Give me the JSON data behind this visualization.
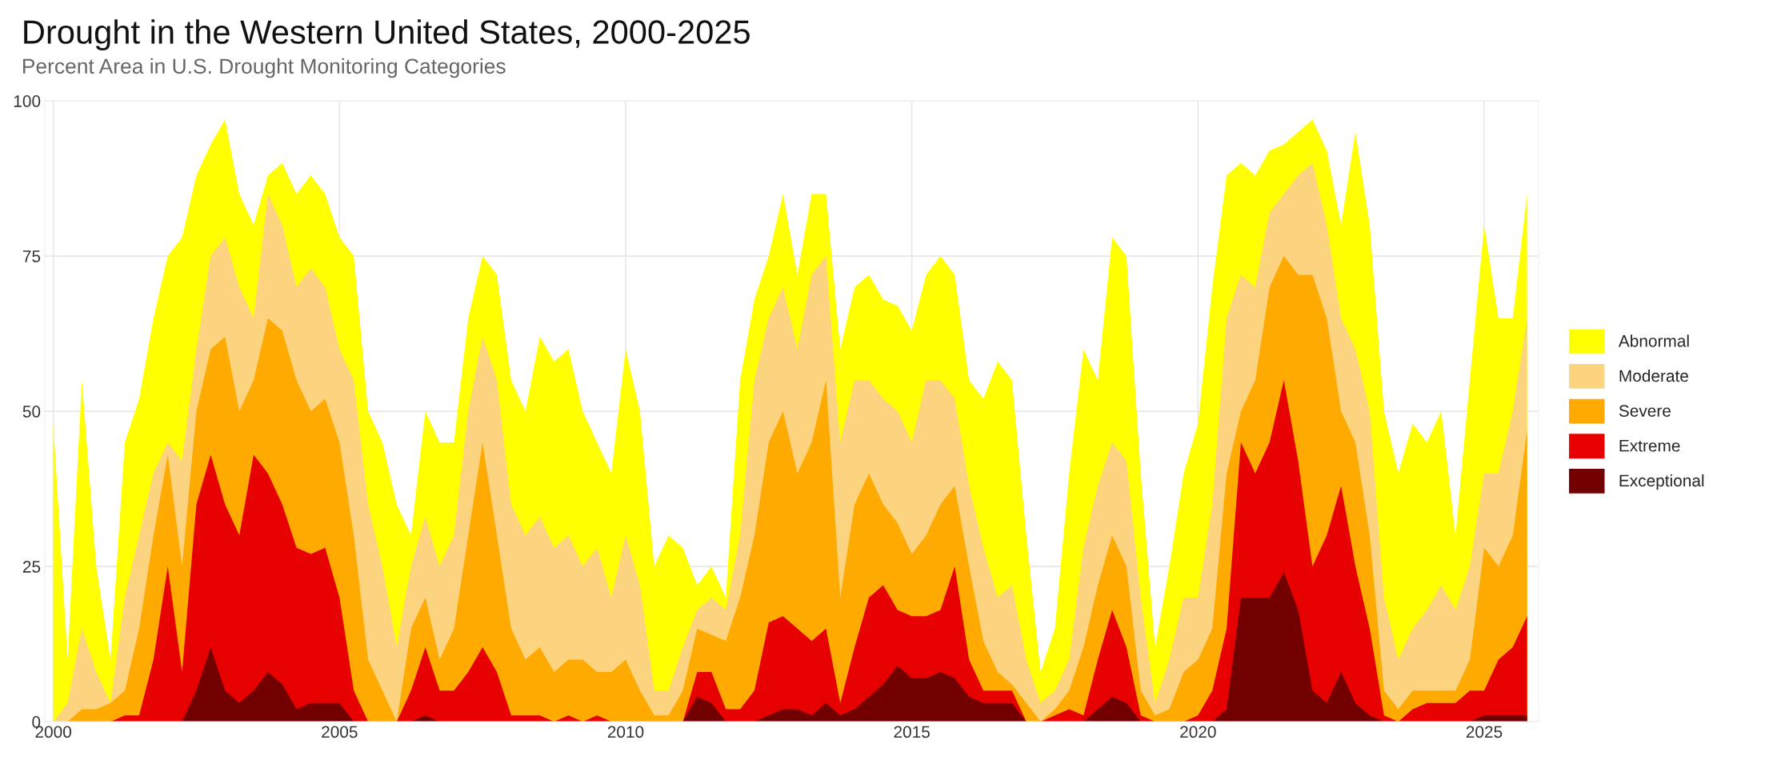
{
  "chart_data": {
    "type": "area",
    "title": "Drought in the Western United States, 2000-2025",
    "subtitle": "Percent Area in U.S. Drought Monitoring Categories",
    "x": [
      2000,
      2000.25,
      2000.5,
      2000.75,
      2001,
      2001.25,
      2001.5,
      2001.75,
      2002,
      2002.25,
      2002.5,
      2002.75,
      2003,
      2003.25,
      2003.5,
      2003.75,
      2004,
      2004.25,
      2004.5,
      2004.75,
      2005,
      2005.25,
      2005.5,
      2005.75,
      2006,
      2006.25,
      2006.5,
      2006.75,
      2007,
      2007.25,
      2007.5,
      2007.75,
      2008,
      2008.25,
      2008.5,
      2008.75,
      2009,
      2009.25,
      2009.5,
      2009.75,
      2010,
      2010.25,
      2010.5,
      2010.75,
      2011,
      2011.25,
      2011.5,
      2011.75,
      2012,
      2012.25,
      2012.5,
      2012.75,
      2013,
      2013.25,
      2013.5,
      2013.75,
      2014,
      2014.25,
      2014.5,
      2014.75,
      2015,
      2015.25,
      2015.5,
      2015.75,
      2016,
      2016.25,
      2016.5,
      2016.75,
      2017,
      2017.25,
      2017.5,
      2017.75,
      2018,
      2018.25,
      2018.5,
      2018.75,
      2019,
      2019.25,
      2019.5,
      2019.75,
      2020,
      2020.25,
      2020.5,
      2020.75,
      2021,
      2021.25,
      2021.5,
      2021.75,
      2022,
      2022.25,
      2022.5,
      2022.75,
      2023,
      2023.25,
      2023.5,
      2023.75,
      2024,
      2024.25,
      2024.5,
      2024.75,
      2025,
      2025.25,
      2025.5,
      2025.75
    ],
    "series": [
      {
        "name": "Abnormal",
        "color": "#ffff00",
        "values": [
          48,
          10,
          55,
          25,
          10,
          45,
          52,
          65,
          75,
          78,
          88,
          93,
          97,
          85,
          80,
          88,
          90,
          85,
          88,
          85,
          78,
          75,
          50,
          45,
          35,
          30,
          50,
          45,
          45,
          65,
          75,
          72,
          55,
          50,
          62,
          58,
          60,
          50,
          45,
          40,
          60,
          50,
          25,
          30,
          28,
          22,
          25,
          20,
          55,
          68,
          75,
          85,
          72,
          85,
          85,
          60,
          70,
          72,
          68,
          67,
          63,
          72,
          75,
          72,
          55,
          52,
          58,
          55,
          30,
          8,
          15,
          40,
          60,
          55,
          78,
          75,
          40,
          12,
          25,
          40,
          48,
          70,
          88,
          90,
          88,
          92,
          93,
          95,
          97,
          92,
          80,
          95,
          80,
          50,
          40,
          48,
          45,
          50,
          30,
          55,
          80,
          65,
          65,
          85
        ]
      },
      {
        "name": "Moderate",
        "color": "#fcd37f",
        "values": [
          0,
          3,
          15,
          8,
          3,
          20,
          30,
          40,
          45,
          42,
          60,
          75,
          78,
          70,
          65,
          85,
          80,
          70,
          73,
          70,
          60,
          55,
          35,
          25,
          12,
          25,
          33,
          25,
          30,
          50,
          62,
          55,
          35,
          30,
          33,
          28,
          30,
          25,
          28,
          20,
          30,
          22,
          5,
          5,
          12,
          18,
          20,
          18,
          30,
          55,
          65,
          70,
          60,
          72,
          75,
          45,
          55,
          55,
          52,
          50,
          45,
          55,
          55,
          52,
          38,
          28,
          20,
          22,
          10,
          3,
          5,
          10,
          28,
          38,
          45,
          42,
          20,
          3,
          10,
          20,
          20,
          35,
          65,
          72,
          70,
          82,
          85,
          88,
          90,
          80,
          65,
          60,
          50,
          20,
          10,
          15,
          18,
          22,
          18,
          25,
          40,
          40,
          50,
          65
        ]
      },
      {
        "name": "Severe",
        "color": "#ffaa00",
        "values": [
          0,
          0,
          2,
          2,
          3,
          5,
          15,
          30,
          43,
          25,
          50,
          60,
          62,
          50,
          55,
          65,
          63,
          55,
          50,
          52,
          45,
          30,
          10,
          5,
          0,
          15,
          20,
          10,
          15,
          30,
          45,
          30,
          15,
          10,
          12,
          8,
          10,
          10,
          8,
          8,
          10,
          5,
          1,
          1,
          5,
          15,
          14,
          13,
          20,
          30,
          45,
          50,
          40,
          45,
          55,
          20,
          35,
          40,
          35,
          32,
          27,
          30,
          35,
          38,
          25,
          13,
          8,
          6,
          3,
          0,
          2,
          5,
          12,
          22,
          30,
          25,
          5,
          1,
          2,
          8,
          10,
          15,
          40,
          50,
          55,
          70,
          75,
          72,
          72,
          65,
          50,
          45,
          30,
          5,
          2,
          5,
          5,
          5,
          5,
          10,
          28,
          25,
          30,
          47
        ]
      },
      {
        "name": "Extreme",
        "color": "#e60000",
        "values": [
          0,
          0,
          0,
          0,
          0,
          1,
          1,
          10,
          25,
          8,
          35,
          43,
          35,
          30,
          43,
          40,
          35,
          28,
          27,
          28,
          20,
          5,
          0,
          0,
          0,
          5,
          12,
          5,
          5,
          8,
          12,
          8,
          1,
          1,
          1,
          0,
          1,
          0,
          1,
          0,
          0,
          0,
          0,
          0,
          0,
          8,
          8,
          2,
          2,
          5,
          16,
          17,
          15,
          13,
          15,
          3,
          12,
          20,
          22,
          18,
          17,
          17,
          18,
          25,
          10,
          5,
          5,
          5,
          0,
          0,
          1,
          2,
          1,
          10,
          18,
          12,
          1,
          0,
          0,
          0,
          1,
          5,
          15,
          45,
          40,
          45,
          55,
          42,
          25,
          30,
          38,
          25,
          15,
          1,
          0,
          2,
          3,
          3,
          3,
          5,
          5,
          10,
          12,
          17
        ]
      },
      {
        "name": "Exceptional",
        "color": "#730000",
        "values": [
          0,
          0,
          0,
          0,
          0,
          0,
          0,
          0,
          0,
          0,
          5,
          12,
          5,
          3,
          5,
          8,
          6,
          2,
          3,
          3,
          3,
          0,
          0,
          0,
          0,
          0,
          1,
          0,
          0,
          0,
          0,
          0,
          0,
          0,
          0,
          0,
          0,
          0,
          0,
          0,
          0,
          0,
          0,
          0,
          0,
          4,
          3,
          0,
          0,
          0,
          1,
          2,
          2,
          1,
          3,
          1,
          2,
          4,
          6,
          9,
          7,
          7,
          8,
          7,
          4,
          3,
          3,
          3,
          0,
          0,
          0,
          0,
          0,
          2,
          4,
          3,
          0,
          0,
          0,
          0,
          0,
          0,
          2,
          20,
          20,
          20,
          24,
          18,
          5,
          3,
          8,
          3,
          1,
          0,
          0,
          0,
          0,
          0,
          0,
          0,
          1,
          1,
          1,
          1
        ]
      }
    ],
    "xlim": [
      1999.85,
      2025.95
    ],
    "xticks": [
      2000,
      2005,
      2010,
      2015,
      2020,
      2025
    ],
    "ylim": [
      0,
      100
    ],
    "yticks": [
      0,
      25,
      50,
      75,
      100
    ],
    "grid": true,
    "legend": "right"
  }
}
